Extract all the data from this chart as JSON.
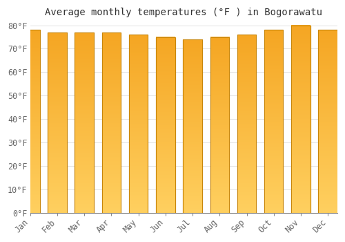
{
  "title": "Average monthly temperatures (°F ) in Bogorawatu",
  "months": [
    "Jan",
    "Feb",
    "Mar",
    "Apr",
    "May",
    "Jun",
    "Jul",
    "Aug",
    "Sep",
    "Oct",
    "Nov",
    "Dec"
  ],
  "values": [
    78,
    77,
    77,
    77,
    76,
    75,
    74,
    75,
    76,
    78,
    80,
    78
  ],
  "bar_color_bottom": "#F5A623",
  "bar_color_top": "#FFD060",
  "bar_edge_color": "#C8860A",
  "background_color": "#FFFFFF",
  "plot_bg_color": "#FFFFFF",
  "grid_color": "#DDDDDD",
  "text_color": "#666666",
  "ylim_min": 0,
  "ylim_max": 80,
  "ytick_step": 10,
  "title_fontsize": 10,
  "tick_fontsize": 8.5,
  "bar_width": 0.7
}
